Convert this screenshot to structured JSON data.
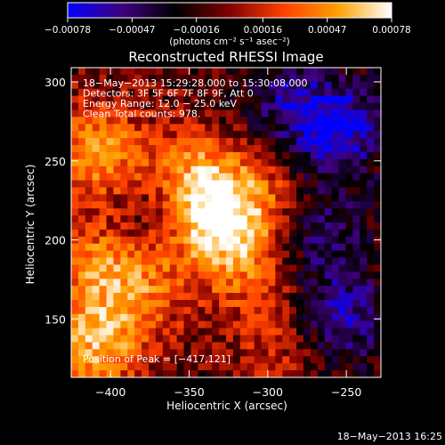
{
  "chart_data": {
    "type": "heatmap",
    "title": "Reconstructed RHESSI Image",
    "xlabel": "Heliocentric X (arcsec)",
    "ylabel": "Heliocentric Y (arcsec)",
    "xlim": [
      -425,
      -228
    ],
    "ylim": [
      113,
      309
    ],
    "x_ticks": [
      -400,
      -350,
      -300,
      -250
    ],
    "x_tick_labels": [
      "−400",
      "−350",
      "−300",
      "−250"
    ],
    "y_ticks": [
      150,
      200,
      250,
      300
    ],
    "y_tick_labels": [
      "150",
      "200",
      "250",
      "300"
    ],
    "colorbar": {
      "min": -0.00078,
      "max": 0.00078,
      "ticks": [
        -0.00078,
        -0.00047,
        -0.00016,
        0.00016,
        0.00047,
        0.00078
      ],
      "tick_labels": [
        "−0.00078",
        "−0.00047",
        "−0.00016",
        "0.00016",
        "0.00047",
        "0.00078"
      ],
      "units_label": "(photons cm⁻² s⁻¹ asec⁻²)",
      "colors": [
        "#0000ff",
        "#400080",
        "#000000",
        "#800000",
        "#ff4000",
        "#ffa000",
        "#ffffff"
      ]
    },
    "annotations": [
      "18−May−2013 15:29:28.000 to 15:30:08.000",
      "Detectors: 3F 5F 6F 7F 8F 9F, Att 0",
      "Energy Range: 12.0 − 25.0 keV",
      "Clean     Total counts: 978."
    ],
    "peak_label": "Position of Peak = [−417,121]",
    "peak": {
      "x": -417,
      "y": 121
    },
    "grid": false,
    "bright_regions": [
      {
        "x": -335,
        "y": 210,
        "intensity": 1.0
      },
      {
        "x": -345,
        "y": 238,
        "intensity": 0.8
      },
      {
        "x": -408,
        "y": 255,
        "intensity": 0.85
      },
      {
        "x": -412,
        "y": 130,
        "intensity": 0.9
      },
      {
        "x": -410,
        "y": 185,
        "intensity": 0.6
      },
      {
        "x": -380,
        "y": 170,
        "intensity": 0.6
      },
      {
        "x": -300,
        "y": 225,
        "intensity": 0.5
      },
      {
        "x": -310,
        "y": 180,
        "intensity": 0.45
      },
      {
        "x": -290,
        "y": 135,
        "intensity": 0.4
      }
    ],
    "dark_regions": [
      {
        "x": -255,
        "y": 270,
        "intensity": -0.9
      },
      {
        "x": -255,
        "y": 150,
        "intensity": -0.8
      },
      {
        "x": -270,
        "y": 205,
        "intensity": -0.6
      },
      {
        "x": -290,
        "y": 290,
        "intensity": -0.5
      },
      {
        "x": -370,
        "y": 215,
        "intensity": -0.4
      }
    ]
  },
  "footer_timestamp": "18−May−2013 16:25"
}
